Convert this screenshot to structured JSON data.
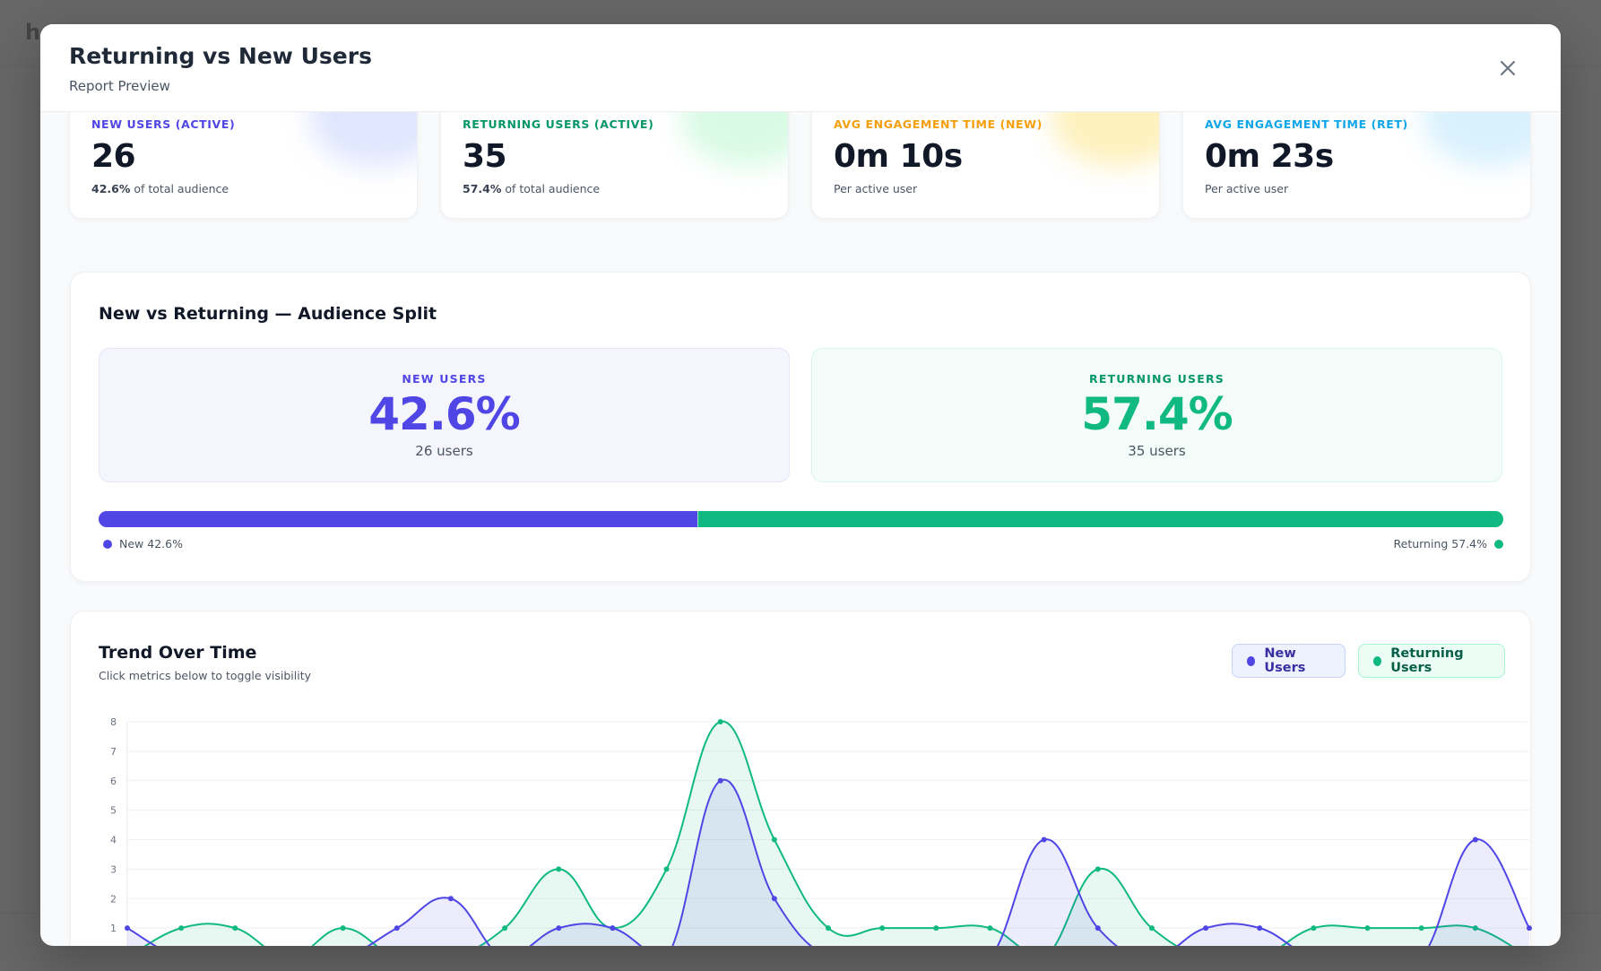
{
  "modal": {
    "title": "Returning vs New Users",
    "subtitle": "Report Preview"
  },
  "stats": [
    {
      "label": "NEW USERS (ACTIVE)",
      "value": "26",
      "note_bold": "42.6%",
      "note": " of total audience",
      "color": "#4f46e5",
      "glow": "#c7d2fe"
    },
    {
      "label": "RETURNING USERS (ACTIVE)",
      "value": "35",
      "note_bold": "57.4%",
      "note": " of total audience",
      "color": "#059669",
      "glow": "#bbf7d0"
    },
    {
      "label": "AVG ENGAGEMENT TIME (NEW)",
      "value": "0m 10s",
      "note_bold": "",
      "note": "Per active user",
      "color": "#f59e0b",
      "glow": "#fde68a"
    },
    {
      "label": "AVG ENGAGEMENT TIME (RET)",
      "value": "0m 23s",
      "note_bold": "",
      "note": "Per active user",
      "color": "#0ea5e9",
      "glow": "#bae6fd"
    }
  ],
  "split": {
    "title": "New vs Returning — Audience Split",
    "new": {
      "label": "NEW USERS",
      "pct": "42.6%",
      "count": "26 users",
      "fraction": 0.426,
      "color": "#4f46e5"
    },
    "returning": {
      "label": "RETURNING USERS",
      "pct": "57.4%",
      "count": "35 users",
      "fraction": 0.574,
      "color": "#10b981"
    },
    "legend_new": "New 42.6%",
    "legend_returning": "Returning 57.4%"
  },
  "trend": {
    "title": "Trend Over Time",
    "subtitle": "Click metrics below to toggle visibility",
    "toggle_new": "New Users",
    "toggle_returning": "Returning Users"
  },
  "chart_data": {
    "type": "area",
    "x_count": 27,
    "ylim": [
      0,
      8
    ],
    "yticks": [
      0,
      1,
      2,
      3,
      4,
      5,
      6,
      7,
      8
    ],
    "grid": true,
    "series": [
      {
        "name": "New Users",
        "color": "#4f46e5",
        "values": [
          1,
          0,
          0,
          0,
          0,
          1,
          2,
          0,
          1,
          1,
          0,
          6,
          2,
          0,
          0,
          0,
          0,
          4,
          1,
          0,
          1,
          1,
          0,
          0,
          0,
          4,
          1
        ]
      },
      {
        "name": "Returning Users",
        "color": "#10b981",
        "values": [
          0,
          1,
          1,
          0,
          1,
          0,
          0,
          1,
          3,
          1,
          3,
          8,
          4,
          1,
          1,
          1,
          1,
          0,
          3,
          1,
          0,
          0,
          1,
          1,
          1,
          1,
          0
        ]
      }
    ]
  }
}
